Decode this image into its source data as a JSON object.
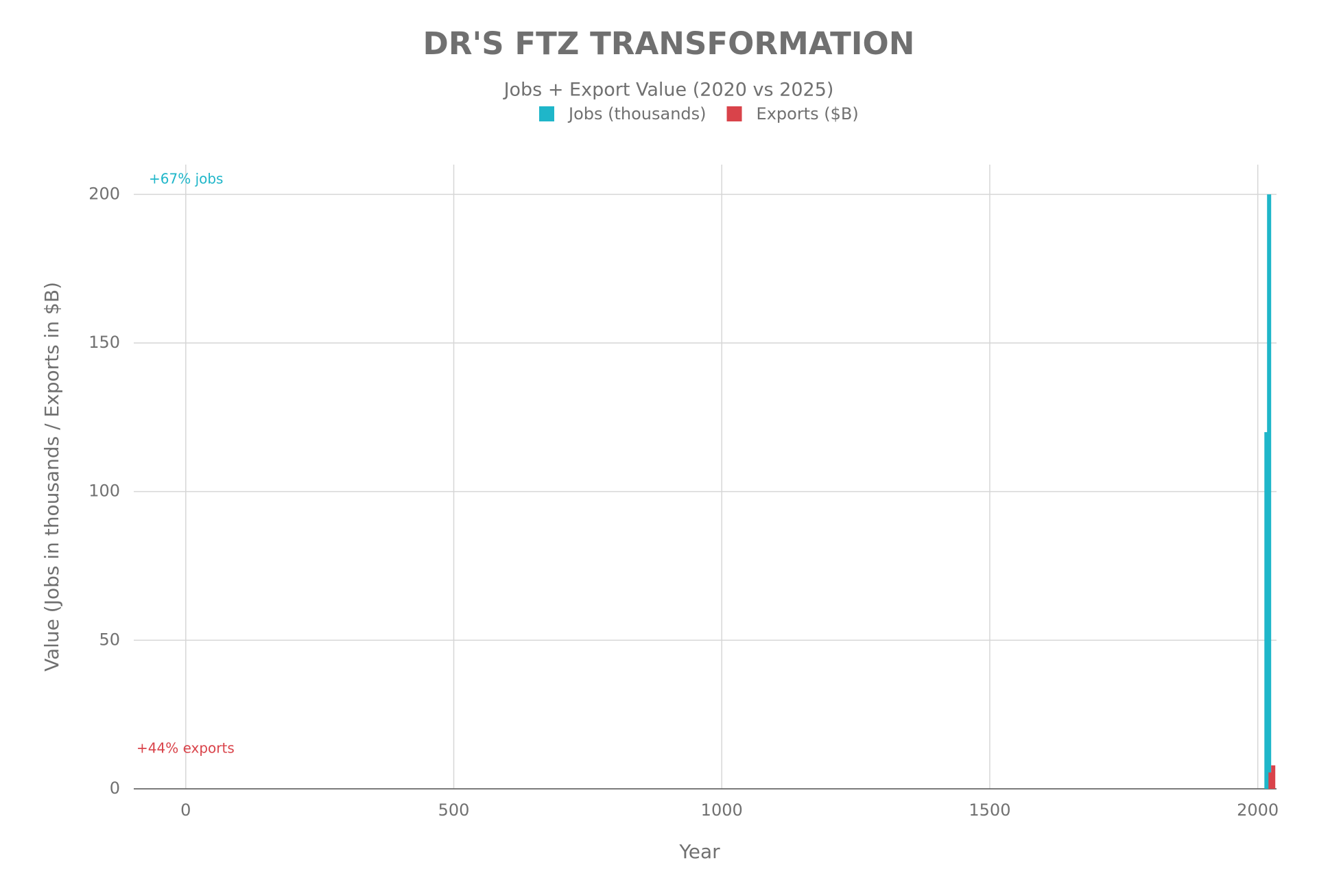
{
  "chart_data": {
    "type": "bar",
    "title": "DR'S FTZ TRANSFORMATION",
    "subtitle": "Jobs + Export Value (2020 vs 2025)",
    "x_label": "Year",
    "y_label": "Value (Jobs in thousands / Exports in $B)",
    "x": [
      2020,
      2025
    ],
    "series": [
      {
        "name": "Jobs (thousands)",
        "color": "#1fb6c9",
        "values": [
          120,
          200
        ]
      },
      {
        "name": "Exports ($B)",
        "color": "#d9434a",
        "values": [
          5.5,
          7.9
        ]
      }
    ],
    "xlim": [
      -97,
      2035
    ],
    "ylim": [
      0,
      210
    ],
    "xticks": [
      0,
      500,
      1000,
      1500,
      2000
    ],
    "yticks": [
      0,
      50,
      100,
      150,
      200
    ],
    "grid": true,
    "annotations": [
      "+67% jobs",
      "+44% exports"
    ]
  }
}
